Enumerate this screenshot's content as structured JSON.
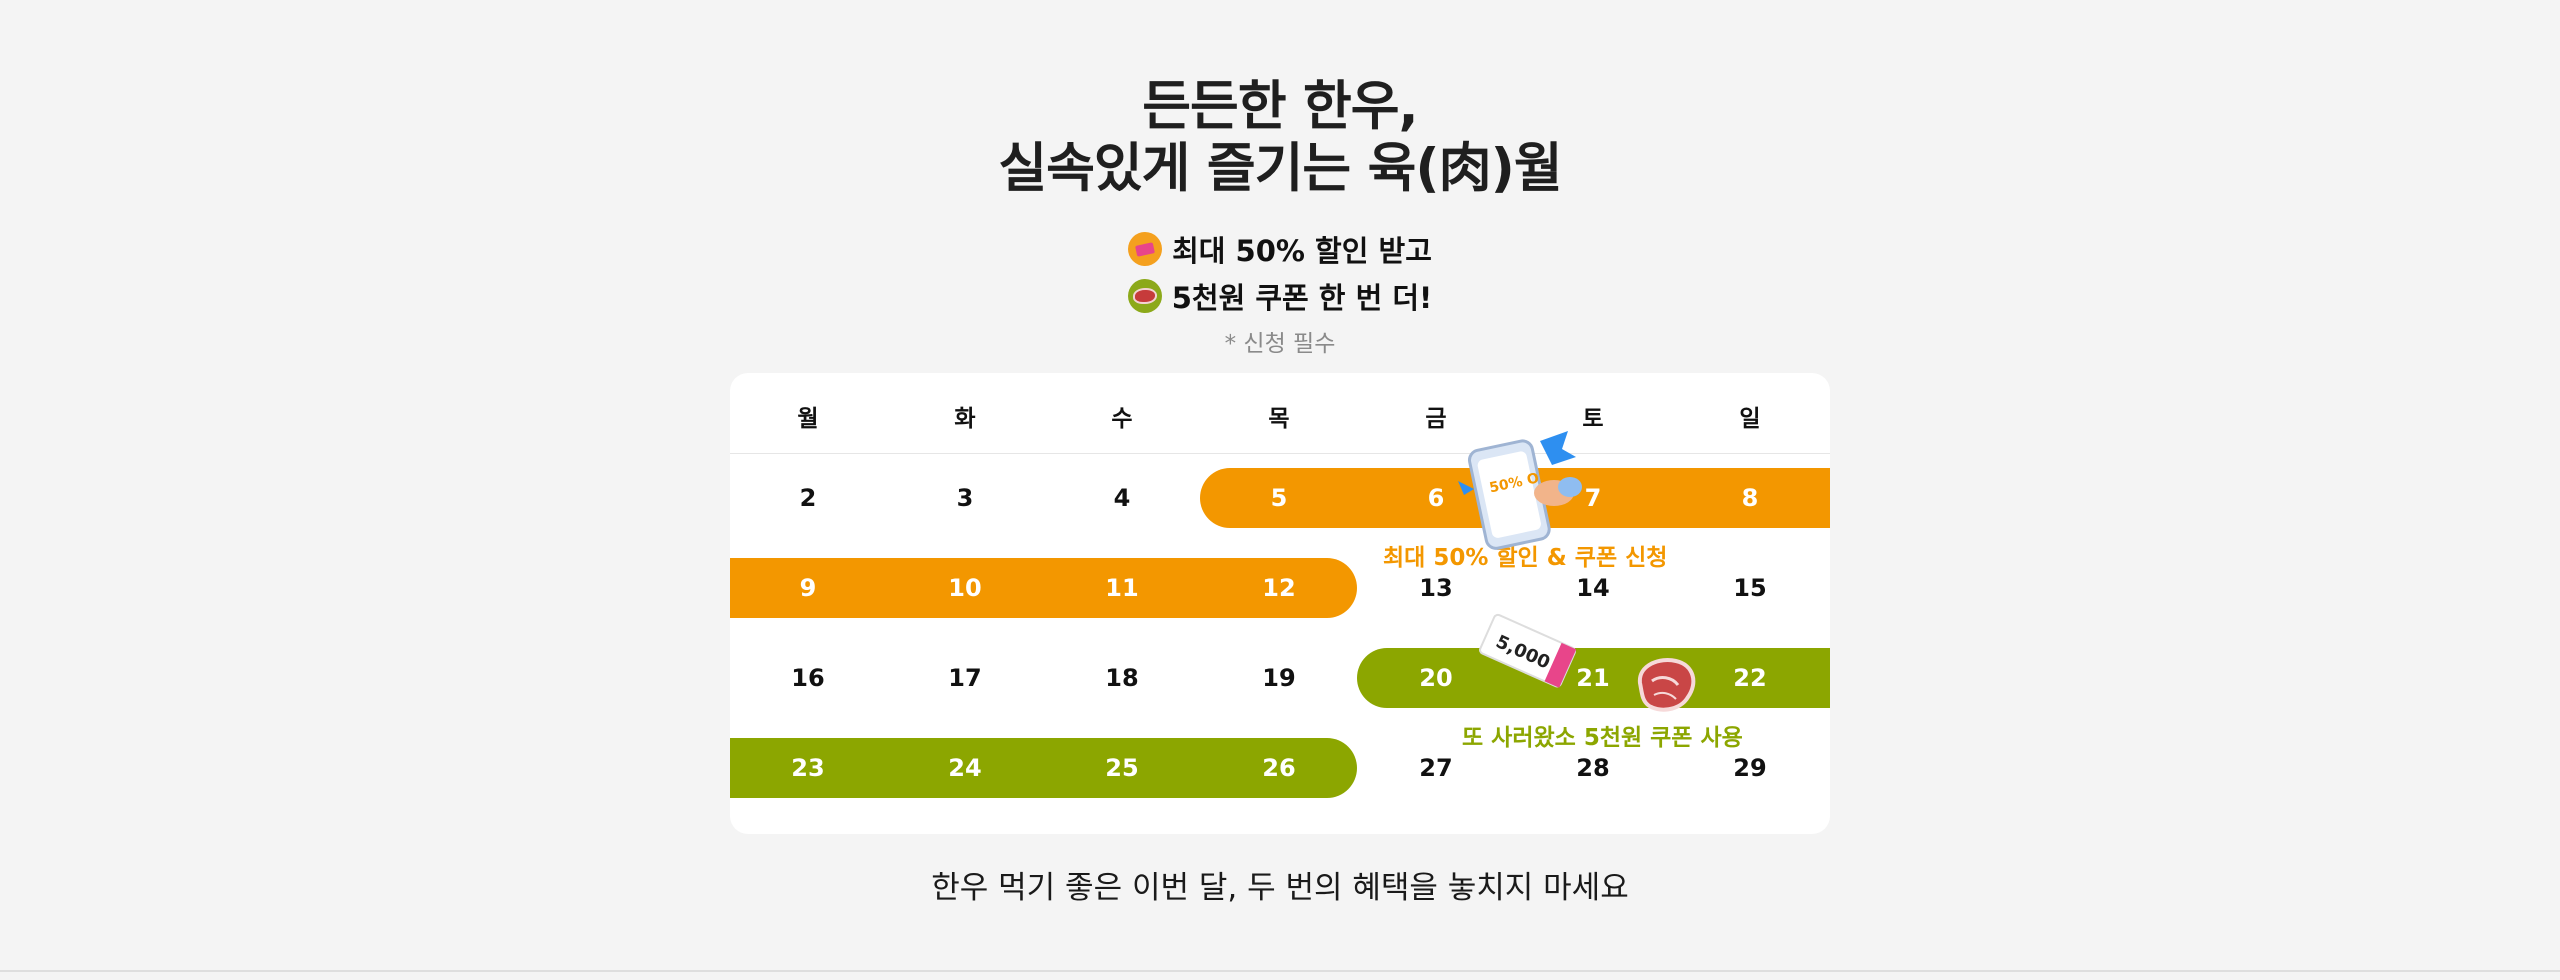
{
  "headline": {
    "line1": "든든한 한우,",
    "line2": "실속있게 즐기는 육(肉)월"
  },
  "benefits": [
    {
      "text": "최대 50% 할인 받고",
      "icon": "discount-tag-icon",
      "color": "#f4a01e"
    },
    {
      "text": "5천원 쿠폰 한 번 더!",
      "icon": "meat-icon",
      "color": "#8ca91a"
    }
  ],
  "note": "* 신청 필수",
  "calendar": {
    "weekdays": [
      "월",
      "화",
      "수",
      "목",
      "금",
      "토",
      "일"
    ],
    "weeks": [
      [
        "2",
        "3",
        "4",
        "5",
        "6",
        "7",
        "8"
      ],
      [
        "9",
        "10",
        "11",
        "12",
        "13",
        "14",
        "15"
      ],
      [
        "16",
        "17",
        "18",
        "19",
        "20",
        "21",
        "22"
      ],
      [
        "23",
        "24",
        "25",
        "26",
        "27",
        "28",
        "29"
      ]
    ],
    "highlight_colors": {
      "discount": "#f39700",
      "coupon": "#8ca600"
    },
    "captions": {
      "discount": "최대 50% 할인 & 쿠폰 신청",
      "coupon": "또 사러왔소 5천원 쿠폰 사용"
    },
    "stickers": {
      "phone": {
        "badge": "50% OFF",
        "icon": "phone-coupon-icon"
      },
      "coupon": {
        "amount": "5,000",
        "icon": "coupon-ticket-icon"
      },
      "meat": {
        "icon": "hanwoo-meat-icon"
      }
    }
  },
  "footer": "한우 먹기 좋은 이번 달, 두 번의 혜택을 놓치지 마세요"
}
